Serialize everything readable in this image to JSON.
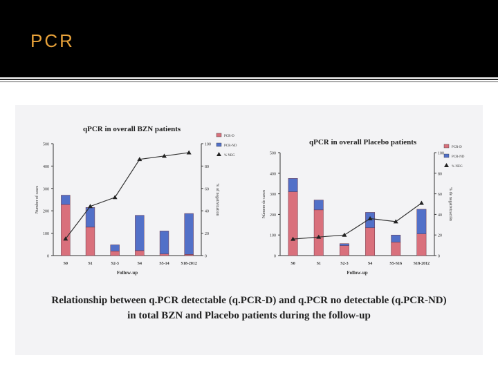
{
  "slide": {
    "title": "PCR"
  },
  "colors": {
    "detectable": "#d9707c",
    "non_detectable": "#5270c8",
    "line": "#333333",
    "header_bg": "#000000",
    "title_color": "#e8a23a"
  },
  "caption": {
    "line1": "Relationship between  q.PCR detectable (q.PCR-D) and q.PCR no  detectable (q.PCR-ND)",
    "line2": "in  total  BZN  and Placebo  patients during the follow-up"
  },
  "chart_data": [
    {
      "type": "bar",
      "title": "qPCR in  overall BZN patients",
      "xlabel": "Follow-up",
      "ylabel": "Number of cases",
      "y2label": "% of negativization",
      "categories": [
        "S0",
        "S1",
        "S2-3",
        "S4",
        "S5-14",
        "S18-2012"
      ],
      "stacked": true,
      "ylim": [
        0,
        500
      ],
      "yticks": [
        "0",
        "100",
        "200",
        "300",
        "400",
        "500"
      ],
      "y2lim": [
        0,
        100
      ],
      "y2ticks": [
        "0",
        "20",
        "40",
        "60",
        "80",
        "100"
      ],
      "series": [
        {
          "name": "PCR-D",
          "kind": "bar",
          "color": "#d9707c",
          "values": [
            228,
            127,
            20,
            22,
            7,
            5
          ]
        },
        {
          "name": "PCR-ND",
          "kind": "bar",
          "color": "#5270c8",
          "values": [
            42,
            88,
            28,
            158,
            103,
            183
          ]
        },
        {
          "name": "% NEG",
          "kind": "line",
          "axis": "right",
          "marker": "triangle",
          "values": [
            15,
            44,
            52,
            86,
            89,
            92
          ]
        }
      ],
      "legend": "top-right"
    },
    {
      "type": "bar",
      "title": "qPCR in  overall Placebo patients",
      "xlabel": "Follow-up",
      "ylabel": "Número de casos",
      "y2label": "% de negativización",
      "categories": [
        "S0",
        "S1",
        "S2-3",
        "S4",
        "S5-S16",
        "S18-2012"
      ],
      "stacked": true,
      "ylim": [
        0,
        500
      ],
      "yticks": [
        "0",
        "100",
        "200",
        "300",
        "400",
        "500"
      ],
      "y2lim": [
        0,
        100
      ],
      "y2ticks": [
        "0",
        "20",
        "40",
        "60",
        "80",
        "100"
      ],
      "series": [
        {
          "name": "PCR-D",
          "kind": "bar",
          "color": "#d9707c",
          "values": [
            310,
            222,
            48,
            135,
            65,
            105
          ]
        },
        {
          "name": "PCR-ND",
          "kind": "bar",
          "color": "#5270c8",
          "values": [
            65,
            48,
            10,
            75,
            35,
            120
          ]
        },
        {
          "name": "% NEG",
          "kind": "line",
          "axis": "right",
          "marker": "triangle",
          "values": [
            16,
            18,
            20,
            36,
            33,
            51
          ]
        }
      ],
      "legend": "top-right"
    }
  ]
}
